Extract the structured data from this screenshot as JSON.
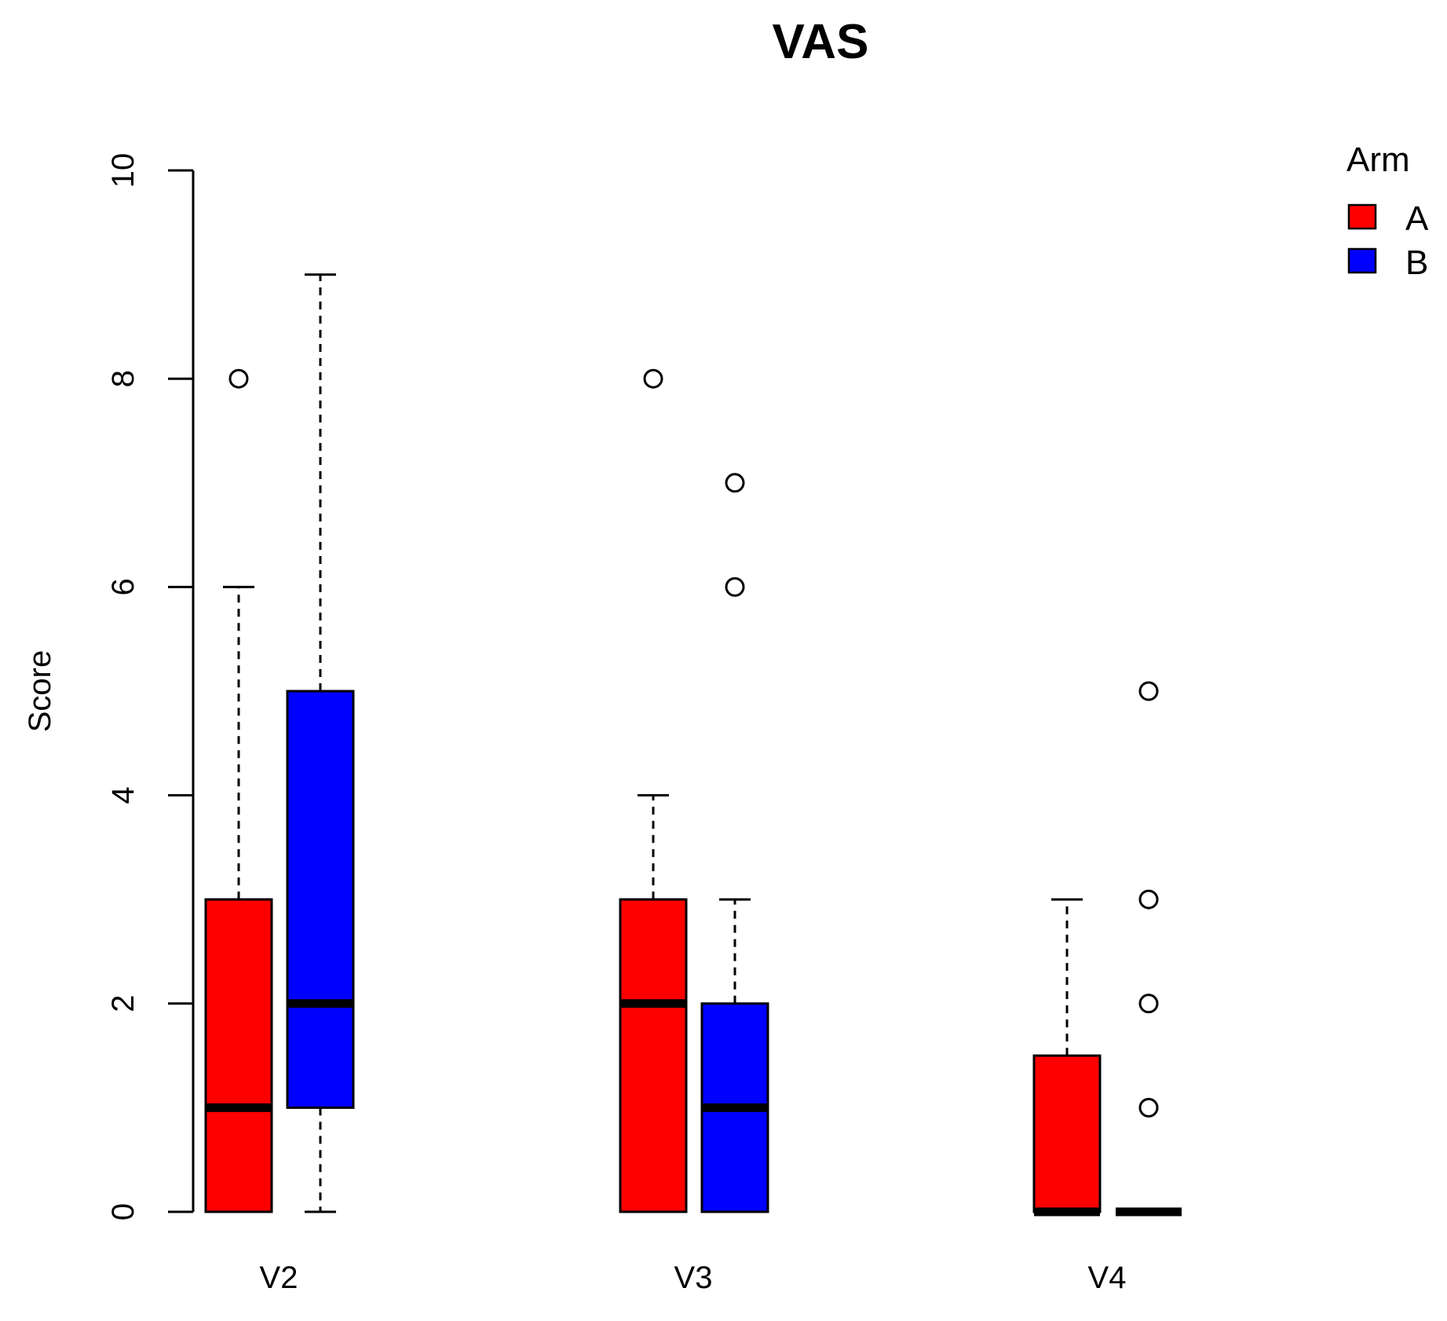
{
  "chart_data": {
    "type": "boxplot",
    "title": "VAS",
    "xlabel": "",
    "ylabel": "Score",
    "ylim": [
      0,
      10
    ],
    "yticks": [
      0,
      2,
      4,
      6,
      8,
      10
    ],
    "ytick_labels": [
      "0",
      "2",
      "4",
      "6",
      "8",
      "10"
    ],
    "grid": false,
    "categories": [
      "V2",
      "V3",
      "V4"
    ],
    "legend": {
      "title": "Arm",
      "position": "top-right"
    },
    "series": [
      {
        "name": "A",
        "color": "#ff0000",
        "boxes": [
          {
            "category": "V2",
            "whisker_low": 0,
            "q1": 0,
            "median": 1,
            "q3": 3,
            "whisker_high": 6,
            "outliers": [
              8
            ]
          },
          {
            "category": "V3",
            "whisker_low": 0,
            "q1": 0,
            "median": 2,
            "q3": 3,
            "whisker_high": 4,
            "outliers": [
              8
            ]
          },
          {
            "category": "V4",
            "whisker_low": 0,
            "q1": 0,
            "median": 0,
            "q3": 1.5,
            "whisker_high": 3,
            "outliers": []
          }
        ]
      },
      {
        "name": "B",
        "color": "#0000ff",
        "boxes": [
          {
            "category": "V2",
            "whisker_low": 0,
            "q1": 1,
            "median": 2,
            "q3": 5,
            "whisker_high": 9,
            "outliers": []
          },
          {
            "category": "V3",
            "whisker_low": 0,
            "q1": 0,
            "median": 1,
            "q3": 2,
            "whisker_high": 3,
            "outliers": [
              6,
              7
            ]
          },
          {
            "category": "V4",
            "whisker_low": 0,
            "q1": 0,
            "median": 0,
            "q3": 0,
            "whisker_high": 0,
            "outliers": [
              1,
              2,
              3,
              5
            ]
          }
        ]
      }
    ]
  }
}
